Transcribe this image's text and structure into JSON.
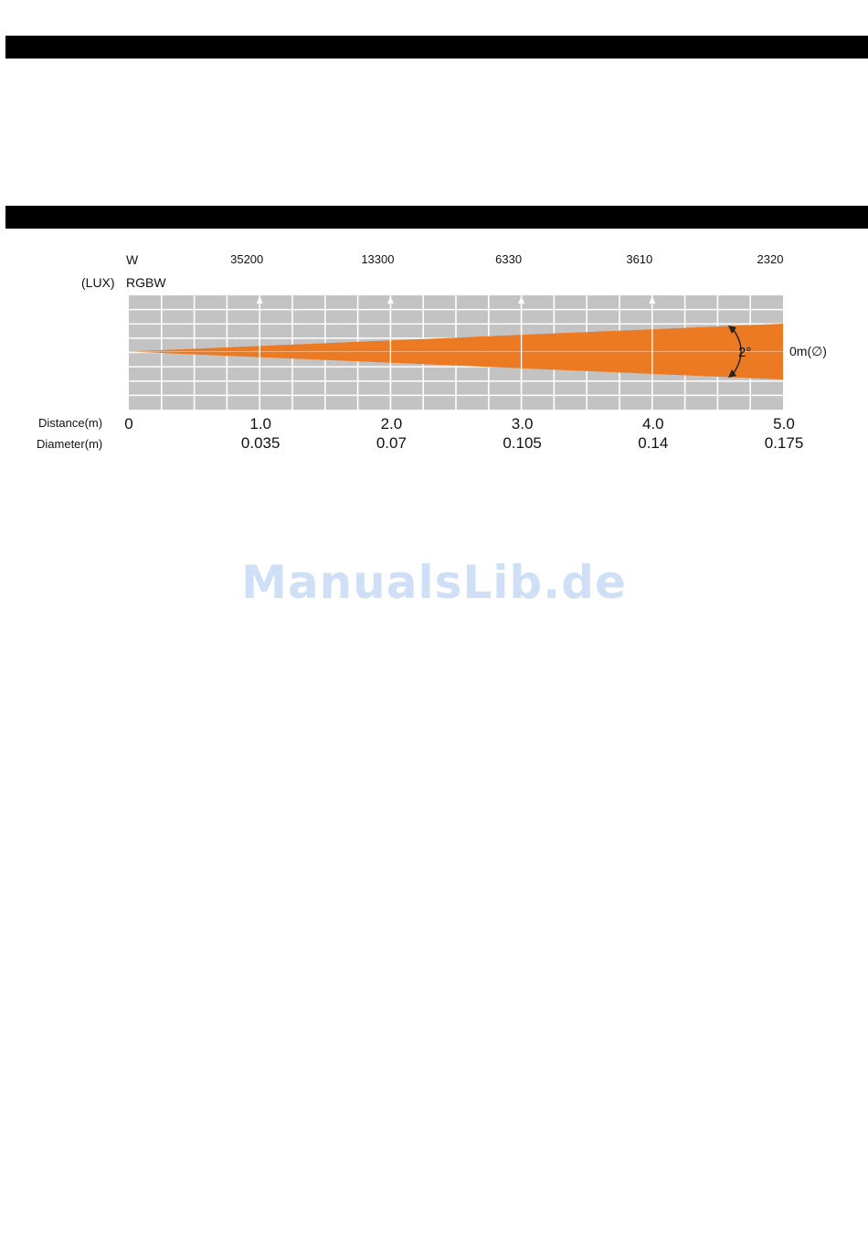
{
  "chart_data": {
    "type": "beam_diagram",
    "row_labels": {
      "white": "W",
      "unit": "(LUX)",
      "rgbw": "RGBW"
    },
    "distance_label": "Distance(m)",
    "diameter_label": "Diameter(m)",
    "beam_angle": "2°",
    "spot_label": "0m(∅)",
    "origin_label": "0",
    "points": [
      {
        "distance": 1.0,
        "distance_text": "1.0",
        "lux": "35200",
        "diameter_text": "0.035"
      },
      {
        "distance": 2.0,
        "distance_text": "2.0",
        "lux": "13300",
        "diameter_text": "0.07"
      },
      {
        "distance": 3.0,
        "distance_text": "3.0",
        "lux": "6330",
        "diameter_text": "0.105"
      },
      {
        "distance": 4.0,
        "distance_text": "4.0",
        "lux": "3610",
        "diameter_text": "0.14"
      },
      {
        "distance": 5.0,
        "distance_text": "5.0",
        "lux": "2320",
        "diameter_text": "0.175"
      }
    ],
    "xlim": [
      0,
      5
    ],
    "colors": {
      "grid_bg": "#c3c3c3",
      "grid_line": "#ffffff",
      "beam": "#ec7a22",
      "arrow": "#ffffff"
    }
  },
  "watermark": "ManualsLib.de"
}
